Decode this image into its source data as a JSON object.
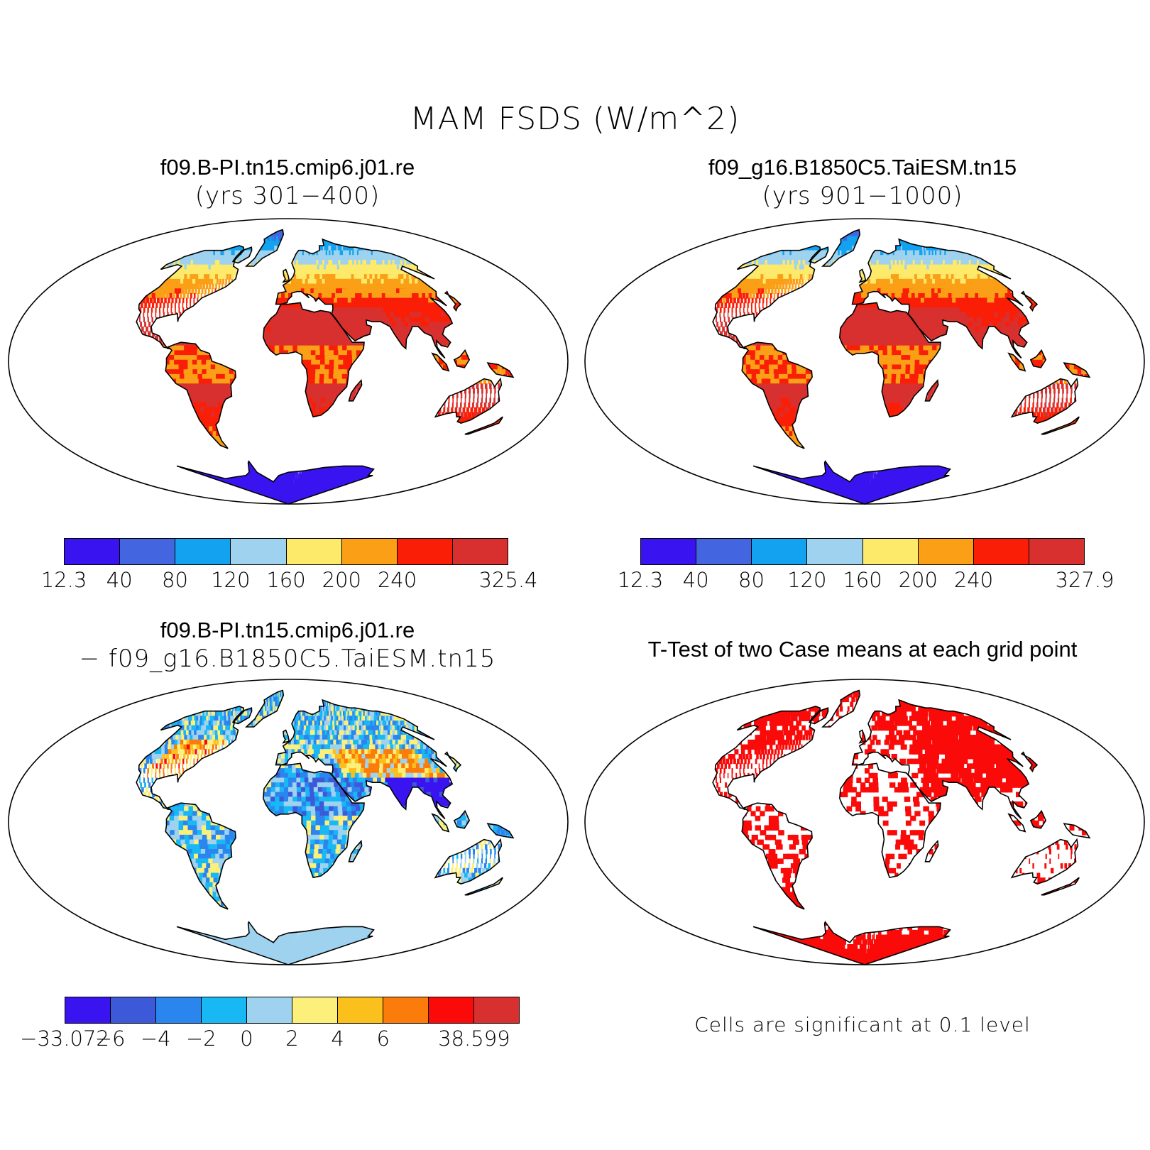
{
  "title": "MAM FSDS (W/m^2)",
  "panels": {
    "top_left": {
      "line1": "f09.B-PI.tn15.cmip6.j01.re",
      "line2": "(yrs 301−400)"
    },
    "top_right": {
      "line1": "f09_g16.B1850C5.TaiESM.tn15",
      "line2": "(yrs 901−1000)"
    },
    "bottom_left": {
      "line1": "f09.B-PI.tn15.cmip6.j01.re",
      "line2": "− f09_g16.B1850C5.TaiESM.tn15"
    },
    "bottom_right": {
      "line1": "T-Test of two Case means at each grid point"
    }
  },
  "colorbar_abs_left": {
    "colors": [
      "#3a14f0",
      "#4366e0",
      "#12a2f0",
      "#9ed2ef",
      "#fde96a",
      "#fa9f16",
      "#fb1e06",
      "#d8302e"
    ],
    "labels": [
      "12.3",
      "40",
      "80",
      "120",
      "160",
      "200",
      "240",
      "",
      "325.4"
    ]
  },
  "colorbar_abs_right": {
    "colors": [
      "#3a14f0",
      "#4366e0",
      "#12a2f0",
      "#9ed2ef",
      "#fde96a",
      "#fa9f16",
      "#fb1e06",
      "#d8302e"
    ],
    "labels": [
      "12.3",
      "40",
      "80",
      "120",
      "160",
      "200",
      "240",
      "",
      "327.9"
    ]
  },
  "colorbar_diff": {
    "colors": [
      "#3a14f0",
      "#3b59d9",
      "#2a86ee",
      "#18b8f4",
      "#9ed2ef",
      "#fdf07a",
      "#fcc01c",
      "#fb7c0a",
      "#fa0a08",
      "#d8302e"
    ],
    "labels": [
      "−33.072",
      "−6",
      "−4",
      "−2",
      "0",
      "2",
      "4",
      "6",
      "",
      "38.599"
    ]
  },
  "significance_note": "Cells are significant at 0.1 level",
  "map_colors": {
    "ocean": "#ffffff",
    "outline": "#000000",
    "significant": "#fa0a08"
  }
}
